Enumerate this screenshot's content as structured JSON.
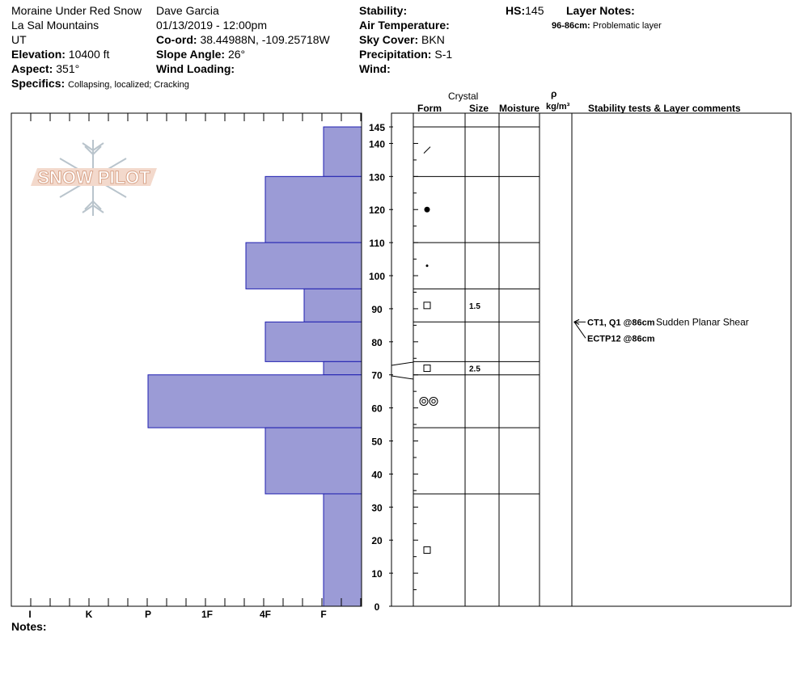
{
  "header": {
    "site": "Moraine Under Red Snow",
    "range": "La Sal Mountains",
    "state": "UT",
    "elevation_label": "Elevation:",
    "elevation_value": "10400 ft",
    "aspect_label": "Aspect:",
    "aspect_value": "351°",
    "specifics_label": "Specifics:",
    "specifics_value": "Collapsing, localized;  Cracking",
    "observer": "Dave Garcia",
    "datetime": "01/13/2019 - 12:00pm",
    "coord_label": "Co-ord:",
    "coord_value": "38.44988N, -109.25718W",
    "slope_label": "Slope Angle:",
    "slope_value": "26°",
    "wind_loading_label": "Wind Loading:",
    "stability_label": "Stability:",
    "air_temp_label": "Air Temperature:",
    "sky_label": "Sky Cover:",
    "sky_value": "BKN",
    "precip_label": "Precipitation:",
    "precip_value": "S-1",
    "wind_label": "Wind:",
    "hs_label": "HS:",
    "hs_value": "145",
    "layer_notes_label": "Layer Notes:",
    "layer_note_range": "96-86cm:",
    "layer_note_text": "Problematic layer"
  },
  "logo_text": "SNOW PILOT",
  "columns": {
    "crystal": "Crystal",
    "form": "Form",
    "size": "Size",
    "moisture": "Moisture",
    "rho": "ρ",
    "density_unit": "kg/m³",
    "stability": "Stability tests & Layer comments"
  },
  "notes_label": "Notes:",
  "chart_data": {
    "type": "hardness-profile",
    "hardness_ticks": [
      "I",
      "K",
      "P",
      "1F",
      "4F",
      "F"
    ],
    "height_ticks": [
      145,
      140,
      130,
      120,
      110,
      100,
      90,
      80,
      70,
      60,
      50,
      40,
      30,
      20,
      10,
      0
    ],
    "ylim": [
      0,
      145
    ],
    "layers": [
      {
        "top": 145,
        "bottom": 130,
        "hardness": "F"
      },
      {
        "top": 130,
        "bottom": 110,
        "hardness": "4F"
      },
      {
        "top": 110,
        "bottom": 96,
        "hardness": "4F+"
      },
      {
        "top": 96,
        "bottom": 86,
        "hardness": "F+"
      },
      {
        "top": 86,
        "bottom": 74,
        "hardness": "4F"
      },
      {
        "top": 74,
        "bottom": 70,
        "hardness": "F"
      },
      {
        "top": 70,
        "bottom": 54,
        "hardness": "P"
      },
      {
        "top": 54,
        "bottom": 34,
        "hardness": "4F"
      },
      {
        "top": 34,
        "bottom": 0,
        "hardness": "F"
      }
    ],
    "crystals": [
      {
        "height": 138,
        "form": "precipitation-particle",
        "size": ""
      },
      {
        "height": 120,
        "form": "rounded-grain",
        "size": ""
      },
      {
        "height": 103,
        "form": "small-rounded",
        "size": ""
      },
      {
        "height": 91,
        "form": "faceted",
        "size": "1.5"
      },
      {
        "height": 72,
        "form": "faceted",
        "size": "2.5"
      },
      {
        "height": 62,
        "form": "melt-freeze",
        "size": ""
      },
      {
        "height": 17,
        "form": "faceted",
        "size": ""
      }
    ],
    "tests": [
      {
        "height": 86,
        "label": "CT1, Q1 @86cm",
        "comment": "Sudden Planar Shear"
      },
      {
        "height": 86,
        "label": "ECTP12 @86cm",
        "comment": ""
      }
    ]
  }
}
